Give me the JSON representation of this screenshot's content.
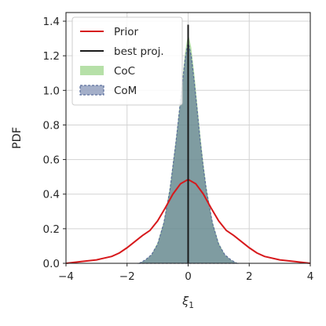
{
  "chart_data": {
    "type": "area",
    "xlabel": "ξ",
    "xlabel_sub": "1",
    "ylabel": "PDF",
    "xlim": [
      -4,
      4
    ],
    "ylim": [
      0,
      1.45
    ],
    "xticks": [
      -4,
      -2,
      0,
      2,
      4
    ],
    "xtick_labels": [
      "−4",
      "−2",
      "0",
      "2",
      "4"
    ],
    "yticks": [
      0.0,
      0.2,
      0.4,
      0.6,
      0.8,
      1.0,
      1.2,
      1.4
    ],
    "ytick_labels": [
      "0.0",
      "0.2",
      "0.4",
      "0.6",
      "0.8",
      "1.0",
      "1.2",
      "1.4"
    ],
    "grid": true,
    "legend_position": "top-left",
    "series": [
      {
        "name": "Prior",
        "kind": "line",
        "color": "#d7191c",
        "x": [
          -4.0,
          -3.5,
          -3.0,
          -2.5,
          -2.25,
          -2.0,
          -1.75,
          -1.5,
          -1.25,
          -1.0,
          -0.75,
          -0.5,
          -0.25,
          0.0,
          0.25,
          0.5,
          0.75,
          1.0,
          1.25,
          1.5,
          1.75,
          2.0,
          2.25,
          2.5,
          3.0,
          3.5,
          4.0
        ],
        "y": [
          0.0,
          0.01,
          0.02,
          0.04,
          0.06,
          0.09,
          0.125,
          0.16,
          0.19,
          0.245,
          0.32,
          0.4,
          0.46,
          0.485,
          0.46,
          0.4,
          0.32,
          0.245,
          0.19,
          0.16,
          0.125,
          0.09,
          0.06,
          0.04,
          0.02,
          0.01,
          0.0
        ]
      },
      {
        "name": "best proj.",
        "kind": "vline",
        "color": "#1a1a1a",
        "x": 0.0,
        "y": 1.38
      },
      {
        "name": "CoC",
        "kind": "area",
        "color": "#8fd07a",
        "x": [
          -1.6,
          -1.4,
          -1.2,
          -1.0,
          -0.8,
          -0.6,
          -0.5,
          -0.4,
          -0.3,
          -0.2,
          -0.1,
          0.0,
          0.1,
          0.2,
          0.3,
          0.4,
          0.5,
          0.6,
          0.8,
          1.0,
          1.2,
          1.4,
          1.6
        ],
        "y": [
          0.0,
          0.02,
          0.05,
          0.12,
          0.24,
          0.44,
          0.58,
          0.72,
          0.88,
          1.05,
          1.22,
          1.33,
          1.25,
          1.1,
          0.92,
          0.74,
          0.58,
          0.44,
          0.24,
          0.12,
          0.05,
          0.02,
          0.0
        ]
      },
      {
        "name": "CoM",
        "kind": "area",
        "color": "#5a6e9c",
        "x": [
          -1.6,
          -1.4,
          -1.2,
          -1.0,
          -0.8,
          -0.6,
          -0.5,
          -0.4,
          -0.3,
          -0.2,
          -0.1,
          0.0,
          0.1,
          0.2,
          0.3,
          0.4,
          0.5,
          0.6,
          0.8,
          1.0,
          1.2,
          1.4,
          1.6
        ],
        "y": [
          0.0,
          0.02,
          0.05,
          0.11,
          0.23,
          0.42,
          0.56,
          0.7,
          0.86,
          1.02,
          1.18,
          1.28,
          1.2,
          1.05,
          0.88,
          0.7,
          0.55,
          0.42,
          0.23,
          0.11,
          0.05,
          0.02,
          0.0
        ]
      }
    ]
  }
}
